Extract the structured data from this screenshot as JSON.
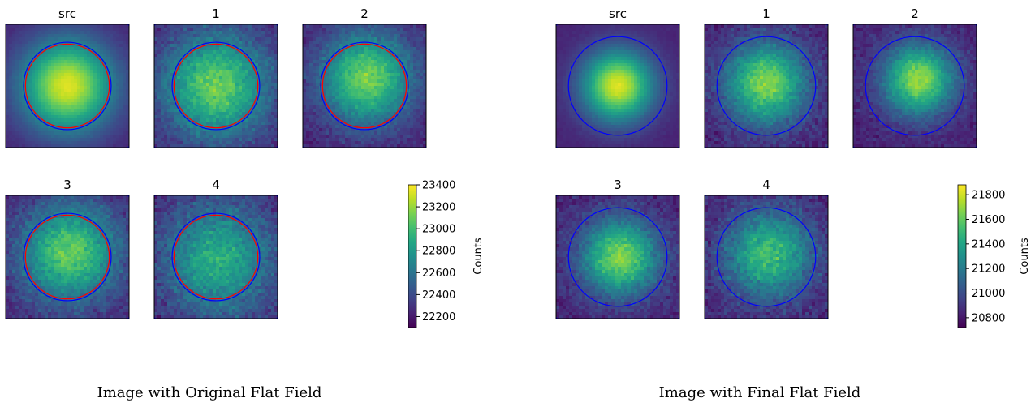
{
  "chart_data": [
    {
      "type": "heatmap",
      "caption": "Image with Original Flat Field",
      "panels": [
        {
          "title": "src",
          "peak": 1.0,
          "spread": 0.26,
          "noise": 0.03,
          "cx": 0.5,
          "cy": 0.5,
          "circles": [
            "blue",
            "red"
          ]
        },
        {
          "title": "1",
          "peak": 0.8,
          "spread": 0.3,
          "noise": 0.16,
          "cx": 0.5,
          "cy": 0.5,
          "circles": [
            "blue",
            "red"
          ]
        },
        {
          "title": "2",
          "peak": 0.82,
          "spread": 0.26,
          "noise": 0.13,
          "cx": 0.52,
          "cy": 0.44,
          "circles": [
            "blue",
            "red"
          ]
        },
        {
          "title": "3",
          "peak": 0.78,
          "spread": 0.28,
          "noise": 0.16,
          "cx": 0.52,
          "cy": 0.47,
          "circles": [
            "blue",
            "red"
          ]
        },
        {
          "title": "4",
          "peak": 0.62,
          "spread": 0.32,
          "noise": 0.19,
          "cx": 0.52,
          "cy": 0.52,
          "circles": [
            "blue",
            "red"
          ]
        }
      ],
      "colorbar": {
        "label": "Counts",
        "min": 22100,
        "max": 23400,
        "ticks": [
          22200,
          22400,
          22600,
          22800,
          23000,
          23200,
          23400
        ],
        "colormap": "viridis"
      }
    },
    {
      "type": "heatmap",
      "caption": "Image with Final Flat Field",
      "panels": [
        {
          "title": "src",
          "peak": 1.0,
          "spread": 0.2,
          "noise": 0.03,
          "cx": 0.5,
          "cy": 0.5,
          "circles": [
            "blue"
          ]
        },
        {
          "title": "1",
          "peak": 0.85,
          "spread": 0.23,
          "noise": 0.15,
          "cx": 0.5,
          "cy": 0.48,
          "circles": [
            "blue"
          ]
        },
        {
          "title": "2",
          "peak": 0.88,
          "spread": 0.2,
          "noise": 0.12,
          "cx": 0.53,
          "cy": 0.45,
          "circles": [
            "blue"
          ]
        },
        {
          "title": "3",
          "peak": 0.84,
          "spread": 0.22,
          "noise": 0.15,
          "cx": 0.52,
          "cy": 0.5,
          "circles": [
            "blue"
          ]
        },
        {
          "title": "4",
          "peak": 0.7,
          "spread": 0.25,
          "noise": 0.18,
          "cx": 0.52,
          "cy": 0.48,
          "circles": [
            "blue"
          ]
        }
      ],
      "colorbar": {
        "label": "Counts",
        "min": 20720,
        "max": 21880,
        "ticks": [
          20800,
          21000,
          21200,
          21400,
          21600,
          21800
        ],
        "colormap": "viridis"
      }
    }
  ],
  "colors": {
    "circle_blue": "#0000ff",
    "circle_red": "#ff0000"
  }
}
